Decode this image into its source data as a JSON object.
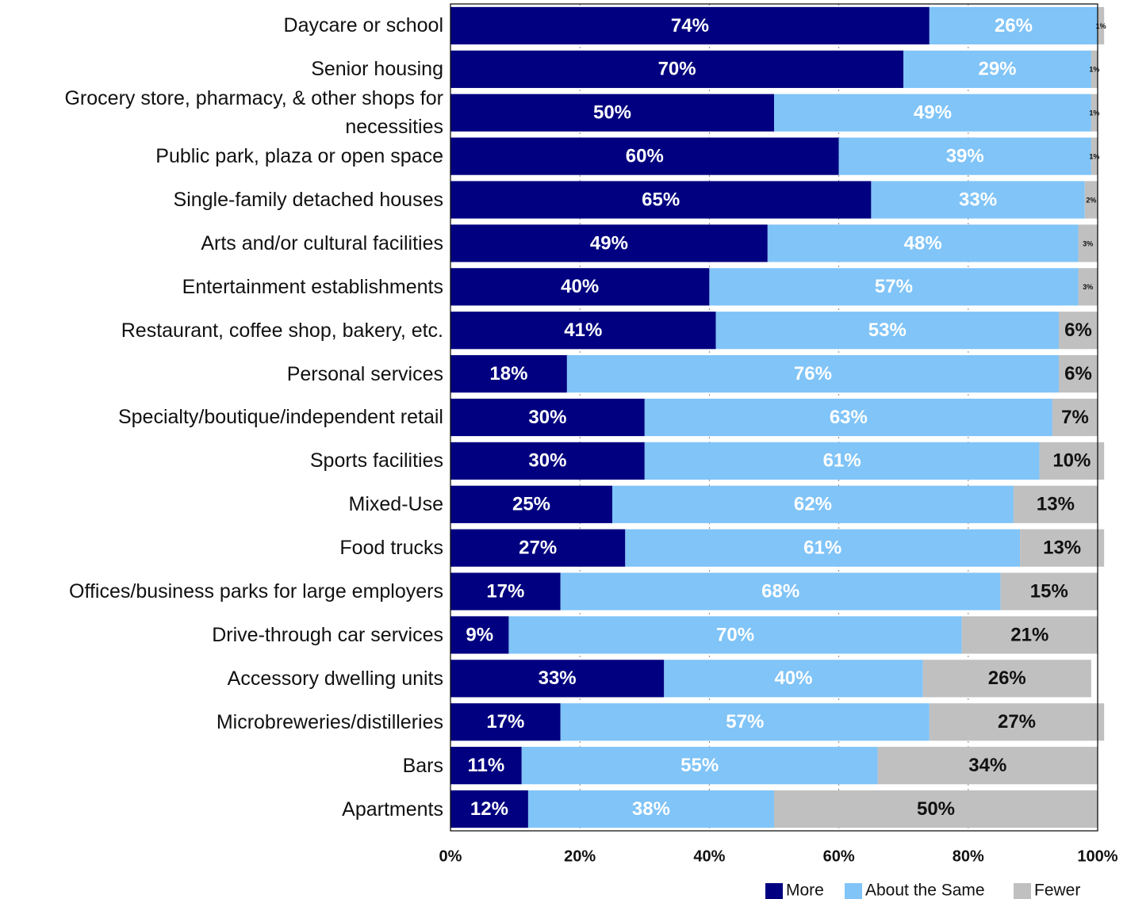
{
  "chart_data": {
    "type": "stacked-barh",
    "categories": [
      "Daycare or school",
      "Senior housing",
      "Grocery store, pharmacy, & other shops for necessities",
      "Public park, plaza or open space",
      "Single-family detached houses",
      "Arts and/or cultural facilities",
      "Entertainment establishments",
      "Restaurant, coffee shop, bakery, etc.",
      "Personal services",
      "Specialty/boutique/independent retail",
      "Sports facilities",
      "Mixed-Use",
      "Food trucks",
      "Offices/business parks for large employers",
      "Drive-through car services",
      "Accessory dwelling units",
      "Microbreweries/distilleries",
      "Bars",
      "Apartments"
    ],
    "series": [
      {
        "name": "More",
        "color": "#000080",
        "values": [
          74,
          70,
          50,
          60,
          65,
          49,
          40,
          41,
          18,
          30,
          30,
          25,
          27,
          17,
          9,
          33,
          17,
          11,
          12
        ],
        "value_labels": [
          "74%",
          "70%",
          "50%",
          "60%",
          "65%",
          "49%",
          "40%",
          "41%",
          "18%",
          "30%",
          "30%",
          "25%",
          "27%",
          "17%",
          "9%",
          "33%",
          "17%",
          "11%",
          "12%"
        ]
      },
      {
        "name": "About the Same",
        "color": "#80c4f8",
        "values": [
          26,
          29,
          49,
          39,
          33,
          48,
          57,
          53,
          76,
          63,
          61,
          62,
          61,
          68,
          70,
          40,
          57,
          55,
          38
        ],
        "value_labels": [
          "26%",
          "29%",
          "49%",
          "39%",
          "33%",
          "48%",
          "57%",
          "53%",
          "76%",
          "63%",
          "61%",
          "62%",
          "61%",
          "68%",
          "70%",
          "40%",
          "57%",
          "55%",
          "38%"
        ]
      },
      {
        "name": "Fewer",
        "color": "#c0c0c0",
        "values": [
          1,
          1,
          1,
          1,
          2,
          3,
          3,
          6,
          6,
          7,
          10,
          13,
          13,
          15,
          21,
          26,
          27,
          34,
          50
        ],
        "value_labels": [
          "1%",
          "1%",
          "1%",
          "1%",
          "2%",
          "3%",
          "3%",
          "6%",
          "6%",
          "7%",
          "10%",
          "13%",
          "13%",
          "15%",
          "21%",
          "26%",
          "27%",
          "34%",
          "50%"
        ]
      }
    ],
    "xlim": [
      0,
      100
    ],
    "xticks": [
      {
        "value": 0,
        "label": "0%"
      },
      {
        "value": 20,
        "label": "20%"
      },
      {
        "value": 40,
        "label": "40%"
      },
      {
        "value": 60,
        "label": "60%"
      },
      {
        "value": 80,
        "label": "80%"
      },
      {
        "value": 100,
        "label": "100%"
      }
    ],
    "grid": true,
    "legend": "bottom-right"
  }
}
